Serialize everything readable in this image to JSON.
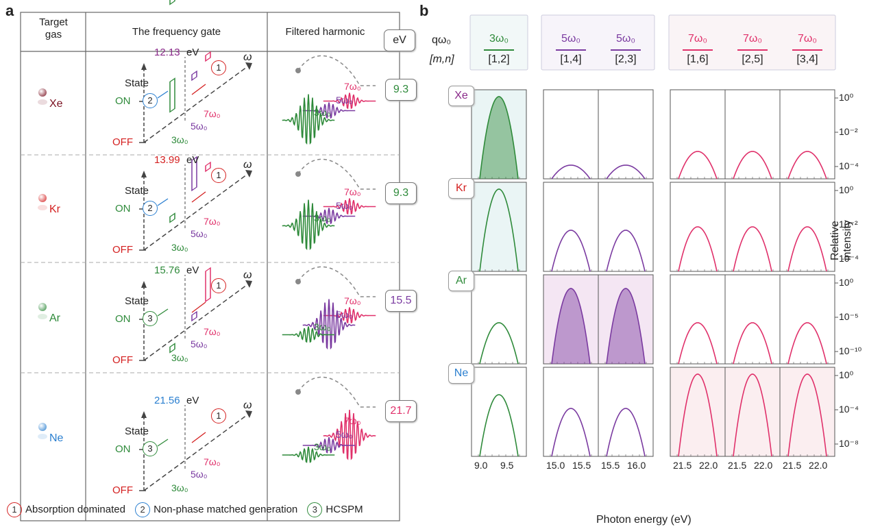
{
  "panel_a": {
    "label": "a",
    "col_headers": [
      "Target\ngas",
      "The frequency gate",
      "Filtered harmonic",
      "eV"
    ],
    "gases": [
      {
        "name": "Xe",
        "color": "#7a1020",
        "ionization": "12.13",
        "ion_color": "#8a2a8a",
        "gate": "2",
        "gate_color": "#2a7fd0",
        "filtered_ev": "9.3",
        "ev_color": "#2e8a3a"
      },
      {
        "name": "Kr",
        "color": "#d42020",
        "ionization": "13.99",
        "ion_color": "#d42020",
        "gate": "2",
        "gate_color": "#2a7fd0",
        "filtered_ev": "9.3",
        "ev_color": "#2e8a3a"
      },
      {
        "name": "Ar",
        "color": "#2e8a3a",
        "ionization": "15.76",
        "ion_color": "#2e8a3a",
        "gate": "3",
        "gate_color": "#2e8a3a",
        "filtered_ev": "15.5",
        "ev_color": "#7a3aa0"
      },
      {
        "name": "Ne",
        "color": "#2a7fd0",
        "ionization": "21.56",
        "ion_color": "#2a7fd0",
        "gate": "3",
        "gate_color": "#2e8a3a",
        "filtered_ev": "21.7",
        "ev_color": "#e0306a"
      }
    ],
    "ev_unit": "eV",
    "state_label": "State",
    "on_label": "ON",
    "off_label": "OFF",
    "omega": "ω",
    "gate_one": "1",
    "harm_labels": [
      "3ω₀",
      "5ω₀",
      "7ω₀"
    ],
    "legend": [
      {
        "num": "1",
        "text": "Absorption dominated",
        "color": "#d42020"
      },
      {
        "num": "2",
        "text": "Non-phase matched generation",
        "color": "#2a7fd0"
      },
      {
        "num": "3",
        "text": "HCSPM",
        "color": "#2e8a3a"
      }
    ]
  },
  "panel_b": {
    "label": "b",
    "qw_label": "qω₀",
    "mn_label": "[m,n]",
    "columns": [
      {
        "q": "3ω₀",
        "mn": "[1,2]",
        "color": "#2e8a3a"
      },
      {
        "q": "5ω₀",
        "mn": "[1,4]",
        "color": "#7a3aa0"
      },
      {
        "q": "5ω₀",
        "mn": "[2,3]",
        "color": "#7a3aa0"
      },
      {
        "q": "7ω₀",
        "mn": "[1,6]",
        "color": "#e0306a"
      },
      {
        "q": "7ω₀",
        "mn": "[2,5]",
        "color": "#e0306a"
      },
      {
        "q": "7ω₀",
        "mn": "[3,4]",
        "color": "#e0306a"
      }
    ],
    "rows": [
      {
        "gas": "Xe",
        "color": "#8a2a8a",
        "yticks": [
          "10⁰",
          "10⁻²",
          "10⁻⁴"
        ]
      },
      {
        "gas": "Kr",
        "color": "#d42020",
        "yticks": [
          "10⁰",
          "10⁻²",
          "10⁻⁴"
        ]
      },
      {
        "gas": "Ar",
        "color": "#2e8a3a",
        "yticks": [
          "10⁰",
          "10⁻⁵",
          "10⁻¹⁰"
        ]
      },
      {
        "gas": "Ne",
        "color": "#2a7fd0",
        "yticks": [
          "10⁰",
          "10⁻⁴",
          "10⁻⁸"
        ]
      }
    ],
    "x_ticks": [
      [
        "9.0",
        "9.5"
      ],
      [
        "15.0",
        "15.5"
      ],
      [
        "15.5",
        "16.0"
      ],
      [
        "21.5",
        "22.0"
      ],
      [
        "21.5",
        "22.0"
      ],
      [
        "21.5",
        "22.0"
      ]
    ],
    "xlabel": "Photon energy (eV)",
    "ylabel": "Relative intensity"
  }
}
